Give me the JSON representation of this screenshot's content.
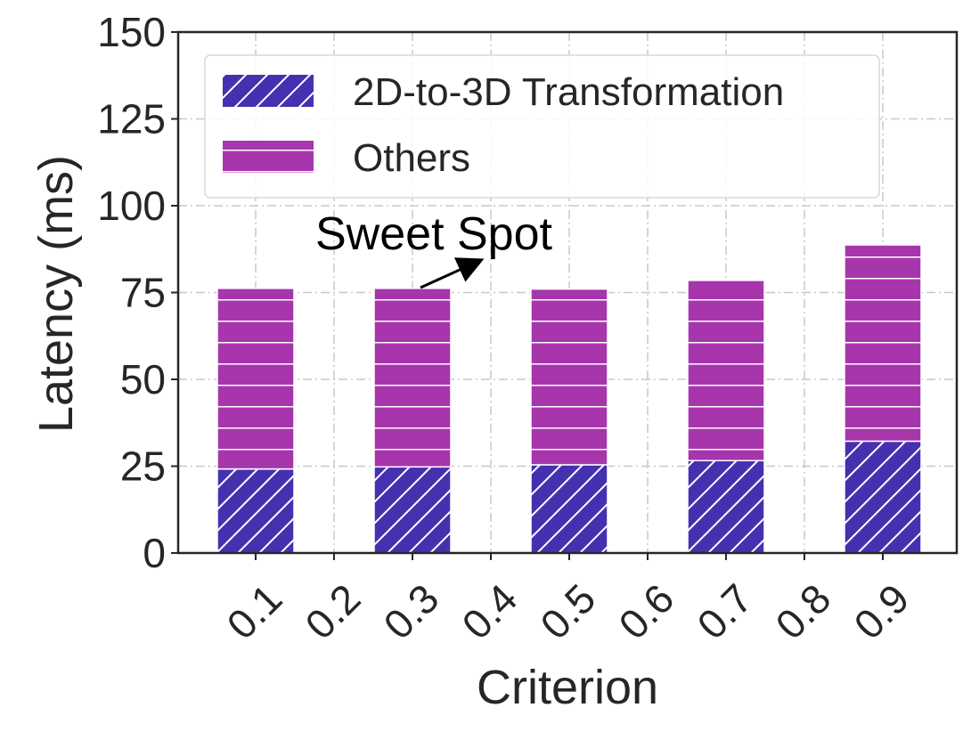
{
  "chart_data": {
    "type": "bar",
    "stacked": true,
    "title": "",
    "xlabel": "Criterion",
    "ylabel": "Latency (ms)",
    "ylim": [
      0,
      150
    ],
    "yticks": [
      "0",
      "25",
      "50",
      "75",
      "100",
      "125",
      "150"
    ],
    "xtick_labels": [
      "0.1",
      "0.2",
      "0.3",
      "0.4",
      "0.5",
      "0.6",
      "0.7",
      "0.8",
      "0.9"
    ],
    "grid": true,
    "legend_position": "top",
    "categories": [
      "0.1",
      "0.3",
      "0.5",
      "0.7",
      "0.9"
    ],
    "series": [
      {
        "name": "2D-to-3D Transformation",
        "values": [
          24.2,
          24.8,
          25.4,
          26.6,
          32.2
        ],
        "color": "#4531B0",
        "pattern": "diagonal-hatch"
      },
      {
        "name": "Others",
        "values": [
          52.0,
          51.4,
          50.6,
          51.9,
          56.5
        ],
        "color": "#A736AD",
        "pattern": "horizontal-hatch"
      }
    ],
    "annotations": [
      {
        "text": "Sweet Spot",
        "target_category": "0.3"
      }
    ]
  }
}
